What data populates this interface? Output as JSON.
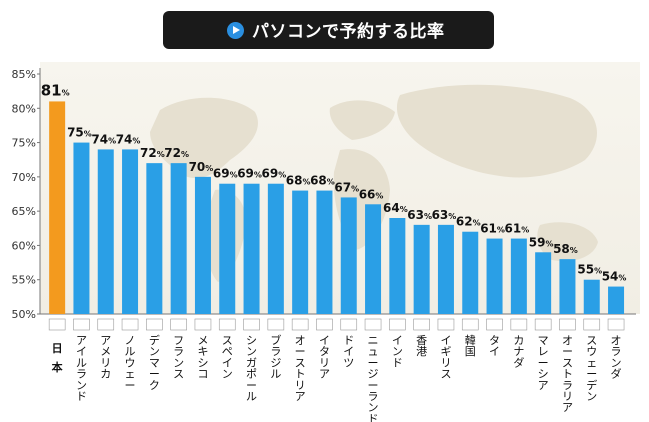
{
  "chart_data": {
    "type": "bar",
    "title": "パソコンで予約する比率",
    "unit": "%",
    "ylim": [
      50,
      85
    ],
    "yticks": [
      50,
      55,
      60,
      65,
      70,
      75,
      80,
      85
    ],
    "tick_labels": [
      "50%",
      "55%",
      "60%",
      "65%",
      "70%",
      "75%",
      "80%",
      "85%"
    ],
    "grid": false,
    "categories": [
      "日本",
      "アイルランド",
      "アメリカ",
      "ノルウェー",
      "デンマーク",
      "フランス",
      "メキシコ",
      "スペイン",
      "シンガポール",
      "ブラジル",
      "オーストリア",
      "イタリア",
      "ドイツ",
      "ニュージーランド",
      "インド",
      "香港",
      "イギリス",
      "韓国",
      "タイ",
      "カナダ",
      "マレーシア",
      "オーストラリア",
      "スウェーデン",
      "オランダ"
    ],
    "values": [
      81,
      75,
      74,
      74,
      72,
      72,
      70,
      69,
      69,
      69,
      68,
      68,
      67,
      66,
      64,
      63,
      63,
      62,
      61,
      61,
      59,
      58,
      55,
      54
    ],
    "highlight_color": "#f39a1e",
    "bar_color": "#2a9fe6"
  }
}
